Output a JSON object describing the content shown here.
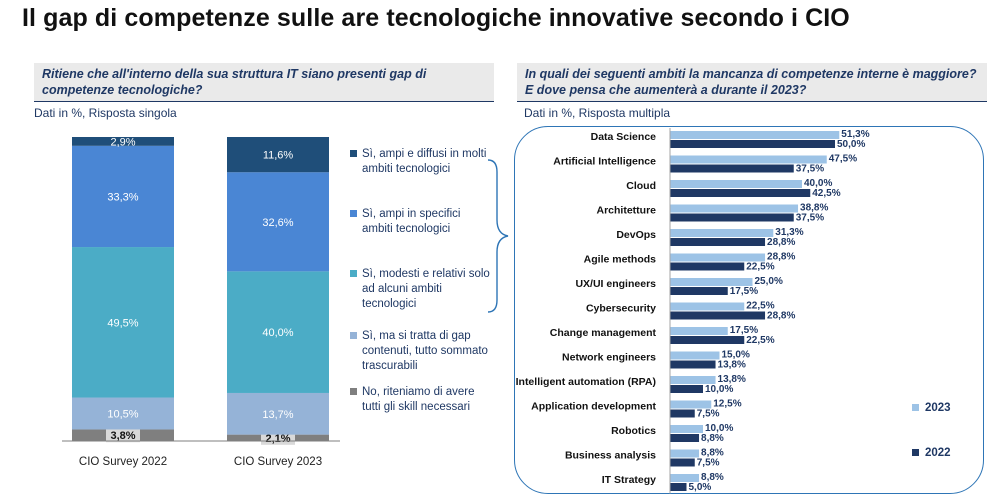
{
  "title": "Il gap di competenze sulle are tecnologiche innovative secondo i CIO",
  "left_panel": {
    "question": "Ritiene che all'interno della sua struttura IT siano presenti gap di competenze tecnologiche?",
    "note": "Dati in %, Risposta singola"
  },
  "right_panel": {
    "question": "In quali dei seguenti ambiti la mancanza di competenze interne è maggiore? E dove pensa che aumenterà a durante il 2023?",
    "note": "Dati in %, Risposta multipla"
  },
  "colors": {
    "dark_blue": "#1f4e79",
    "mid_blue": "#4a86d4",
    "teal": "#4bacc6",
    "light_blue": "#95b3d7",
    "gray": "#7f7f7f",
    "bar_2023": "#9dc3e6",
    "bar_2022": "#1f3864"
  },
  "chart_data": [
    {
      "type": "bar",
      "stacked": true,
      "categories": [
        "CIO Survey 2022",
        "CIO Survey 2023"
      ],
      "ylim": [
        0,
        100
      ],
      "series": [
        {
          "name": "No, riteniamo di avere tutti gli skill necessari",
          "values": [
            3.8,
            2.1
          ],
          "labels": [
            "3,8%",
            "2,1%"
          ],
          "color": "#7f7f7f"
        },
        {
          "name": "Sì, ma si tratta di gap contenuti, tutto sommato trascurabili",
          "values": [
            10.5,
            13.7
          ],
          "labels": [
            "10,5%",
            "13,7%"
          ],
          "color": "#95b3d7"
        },
        {
          "name": "Sì, modesti e relativi solo ad alcuni ambiti tecnologici",
          "values": [
            49.5,
            40.0
          ],
          "labels": [
            "49,5%",
            "40,0%"
          ],
          "color": "#4bacc6"
        },
        {
          "name": "Sì, ampi in specifici ambiti tecnologici",
          "values": [
            33.3,
            32.6
          ],
          "labels": [
            "33,3%",
            "32,6%"
          ],
          "color": "#4a86d4"
        },
        {
          "name": "Sì, ampi e diffusi in molti ambiti tecnologici",
          "values": [
            2.9,
            11.6
          ],
          "labels": [
            "2,9%",
            "11,6%"
          ],
          "color": "#1f4e79"
        }
      ]
    },
    {
      "type": "bar",
      "orientation": "horizontal",
      "categories": [
        "Data Science",
        "Artificial Intelligence",
        "Cloud",
        "Architetture",
        "DevOps",
        "Agile methods",
        "UX/UI engineers",
        "Cybersecurity",
        "Change management",
        "Network engineers",
        "Intelligent automation (RPA)",
        "Application development",
        "Robotics",
        "Business analysis",
        "IT Strategy"
      ],
      "xlim": [
        0,
        60
      ],
      "series": [
        {
          "name": "2023",
          "color": "#9dc3e6",
          "values": [
            51.3,
            47.5,
            40.0,
            38.8,
            31.3,
            28.8,
            25.0,
            22.5,
            17.5,
            15.0,
            13.8,
            12.5,
            10.0,
            8.8,
            8.8
          ],
          "labels": [
            "51,3%",
            "47,5%",
            "40,0%",
            "38,8%",
            "31,3%",
            "28,8%",
            "25,0%",
            "22,5%",
            "17,5%",
            "15,0%",
            "13,8%",
            "12,5%",
            "10,0%",
            "8,8%",
            "8,8%"
          ]
        },
        {
          "name": "2022",
          "color": "#1f3864",
          "values": [
            50.0,
            37.5,
            42.5,
            37.5,
            28.8,
            22.5,
            17.5,
            28.8,
            22.5,
            13.8,
            10.0,
            7.5,
            8.8,
            7.5,
            5.0
          ],
          "labels": [
            "50,0%",
            "37,5%",
            "42,5%",
            "37,5%",
            "28,8%",
            "22,5%",
            "17,5%",
            "28,8%",
            "22,5%",
            "13,8%",
            "10,0%",
            "7,5%",
            "8,8%",
            "7,5%",
            "5,0%"
          ]
        }
      ]
    }
  ]
}
